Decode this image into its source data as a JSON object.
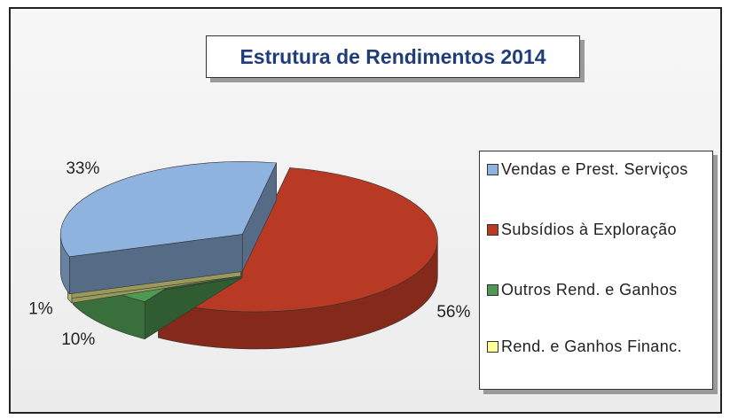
{
  "chart_data": {
    "type": "pie",
    "title": "Estrutura de Rendimentos 2014",
    "categories": [
      "Vendas e Prest. Serviços",
      "Subsídios à Exploração",
      "Outros Rend. e Ganhos",
      "Rend. e Ganhos Financ."
    ],
    "values": [
      33,
      56,
      10,
      1
    ],
    "value_labels": [
      "33%",
      "56%",
      "10%",
      "1%"
    ],
    "colors": [
      "#8fb3df",
      "#b93a24",
      "#4f9a52",
      "#ffff99"
    ]
  }
}
